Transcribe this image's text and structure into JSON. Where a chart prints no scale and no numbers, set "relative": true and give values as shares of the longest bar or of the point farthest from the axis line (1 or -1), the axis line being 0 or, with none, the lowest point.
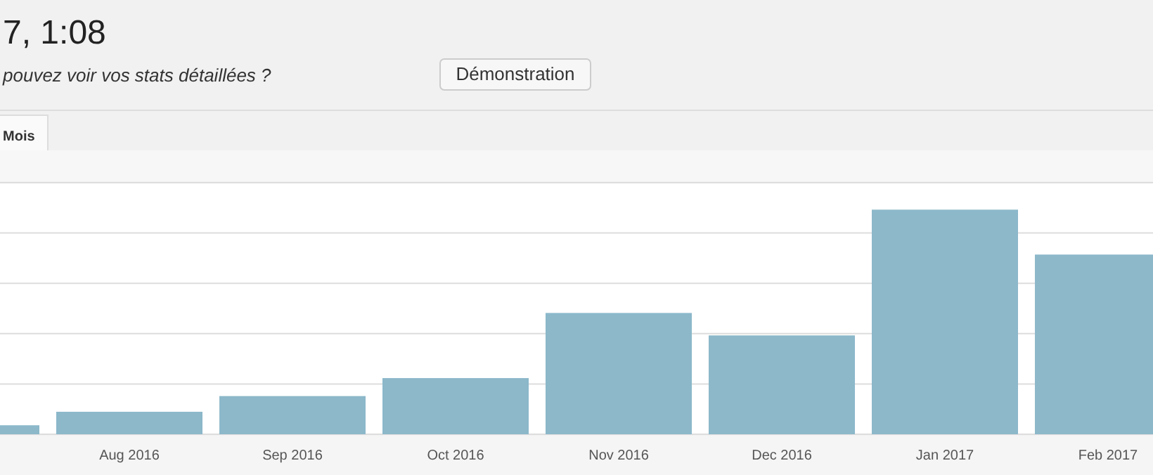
{
  "chart_data": {
    "type": "bar",
    "title": "7, 1:08",
    "subtitle": "pouvez voir vos stats détaillées ?",
    "annotations": [
      "Démonstration",
      "Mois"
    ],
    "categories": [
      null,
      "Aug 2016",
      "Sep 2016",
      "Oct 2016",
      "Nov 2016",
      "Dec 2016",
      "Jan 2017",
      "Feb 2017"
    ],
    "values": [
      0.04,
      0.1,
      0.17,
      0.25,
      0.54,
      0.44,
      1,
      0.8
    ],
    "color": "#8cb8ca",
    "relative": true,
    "grid": true
  }
}
